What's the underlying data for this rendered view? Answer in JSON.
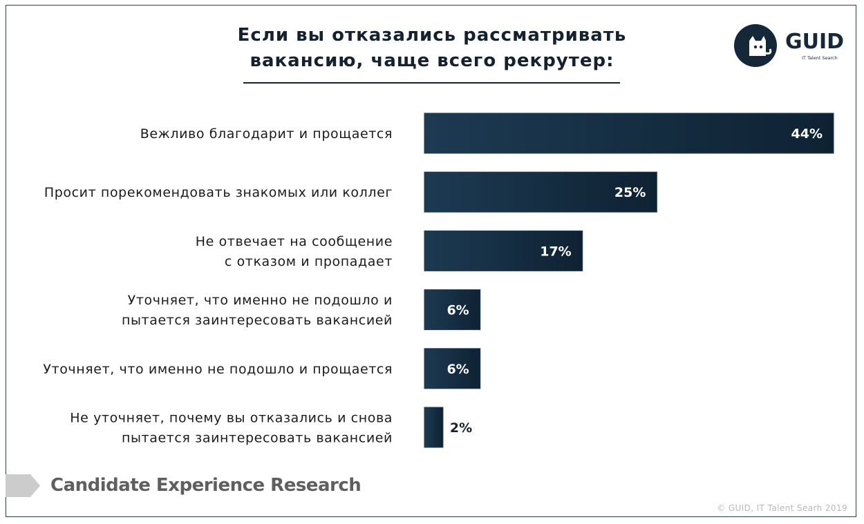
{
  "title_lines": [
    "Если вы отказались рассматривать",
    "вакансию, чаще всего рекрутер:"
  ],
  "logo": {
    "name": "GUID",
    "subtitle": "IT Talent Search",
    "icon": "cat-icon"
  },
  "footer": {
    "title": "Candidate Experience Research",
    "copyright": "© GUID, IT Talent Searh 2019"
  },
  "colors": {
    "bar": "#12283a",
    "bar_edge": "#1f3a52",
    "value_inside": "#ffffff",
    "value_outside": "#14212e"
  },
  "chart_data": {
    "type": "bar",
    "orientation": "horizontal",
    "categories": [
      [
        "Вежливо благодарит и прощается"
      ],
      [
        "Просит порекомендовать знакомых или коллег"
      ],
      [
        "Не отвечает на сообщение",
        "с отказом и пропадает"
      ],
      [
        "Уточняет, что именно не подошло и",
        "пытается заинтересовать вакансией"
      ],
      [
        "Уточняет, что именно не подошло и прощается"
      ],
      [
        "Не уточняет, почему вы отказались и снова",
        "пытается заинтересовать вакансией"
      ]
    ],
    "values": [
      44,
      25,
      17,
      6,
      6,
      2
    ],
    "value_labels": [
      "44%",
      "25%",
      "17%",
      "6%",
      "6%",
      "2%"
    ],
    "unit": "%",
    "xlim": [
      0,
      44
    ],
    "grid": false,
    "legend": "none"
  }
}
